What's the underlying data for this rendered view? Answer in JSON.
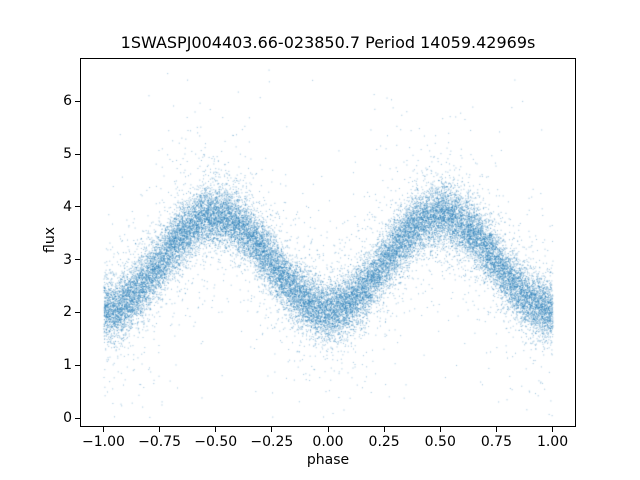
{
  "chart_data": {
    "type": "scatter",
    "title": "1SWASPJ004403.66-023850.7 Period 14059.42969s",
    "xlabel": "phase",
    "ylabel": "flux",
    "xlim": [
      -1.1,
      1.1
    ],
    "ylim": [
      -0.15,
      6.8
    ],
    "x_ticks": [
      -1.0,
      -0.75,
      -0.5,
      -0.25,
      0.0,
      0.25,
      0.5,
      0.75,
      1.0
    ],
    "x_tick_labels": [
      "−1.00",
      "−0.75",
      "−0.50",
      "−0.25",
      "0.00",
      "0.25",
      "0.50",
      "0.75",
      "1.00"
    ],
    "y_ticks": [
      0,
      1,
      2,
      3,
      4,
      5,
      6
    ],
    "y_tick_labels": [
      "0",
      "1",
      "2",
      "3",
      "4",
      "5",
      "6"
    ],
    "grid": false,
    "legend": null,
    "marker_color": "#1f77b4",
    "marker_alpha": 0.45,
    "marker_size_px": 1,
    "n_points": 28000,
    "model": {
      "description": "Phase-folded stellar light curve: flux = mean_flux + amplitude*cos(2*pi*phase + pi), minima (flux ~2.05) at phase -1, 0, +1 and maxima (flux ~3.85) at phase -0.5, +0.5, with gaussian scatter plus sparse outliers up to ~6.5 and down to ~0.2",
      "phase_range": [
        -1.0,
        1.0
      ],
      "mean_flux": 2.95,
      "amplitude": 0.9,
      "minima_phase": [
        -1.0,
        0.0,
        1.0
      ],
      "minima_flux": 2.05,
      "maxima_phase": [
        -0.5,
        0.5
      ],
      "maxima_flux": 3.85,
      "core_noise_sigma": 0.28,
      "outlier_fraction": 0.1,
      "outlier_sigma": 0.7,
      "far_outlier_fraction": 0.025,
      "far_outlier_sigma": 1.5,
      "flux_clip": [
        0.0,
        6.6
      ],
      "seed": 42
    }
  }
}
